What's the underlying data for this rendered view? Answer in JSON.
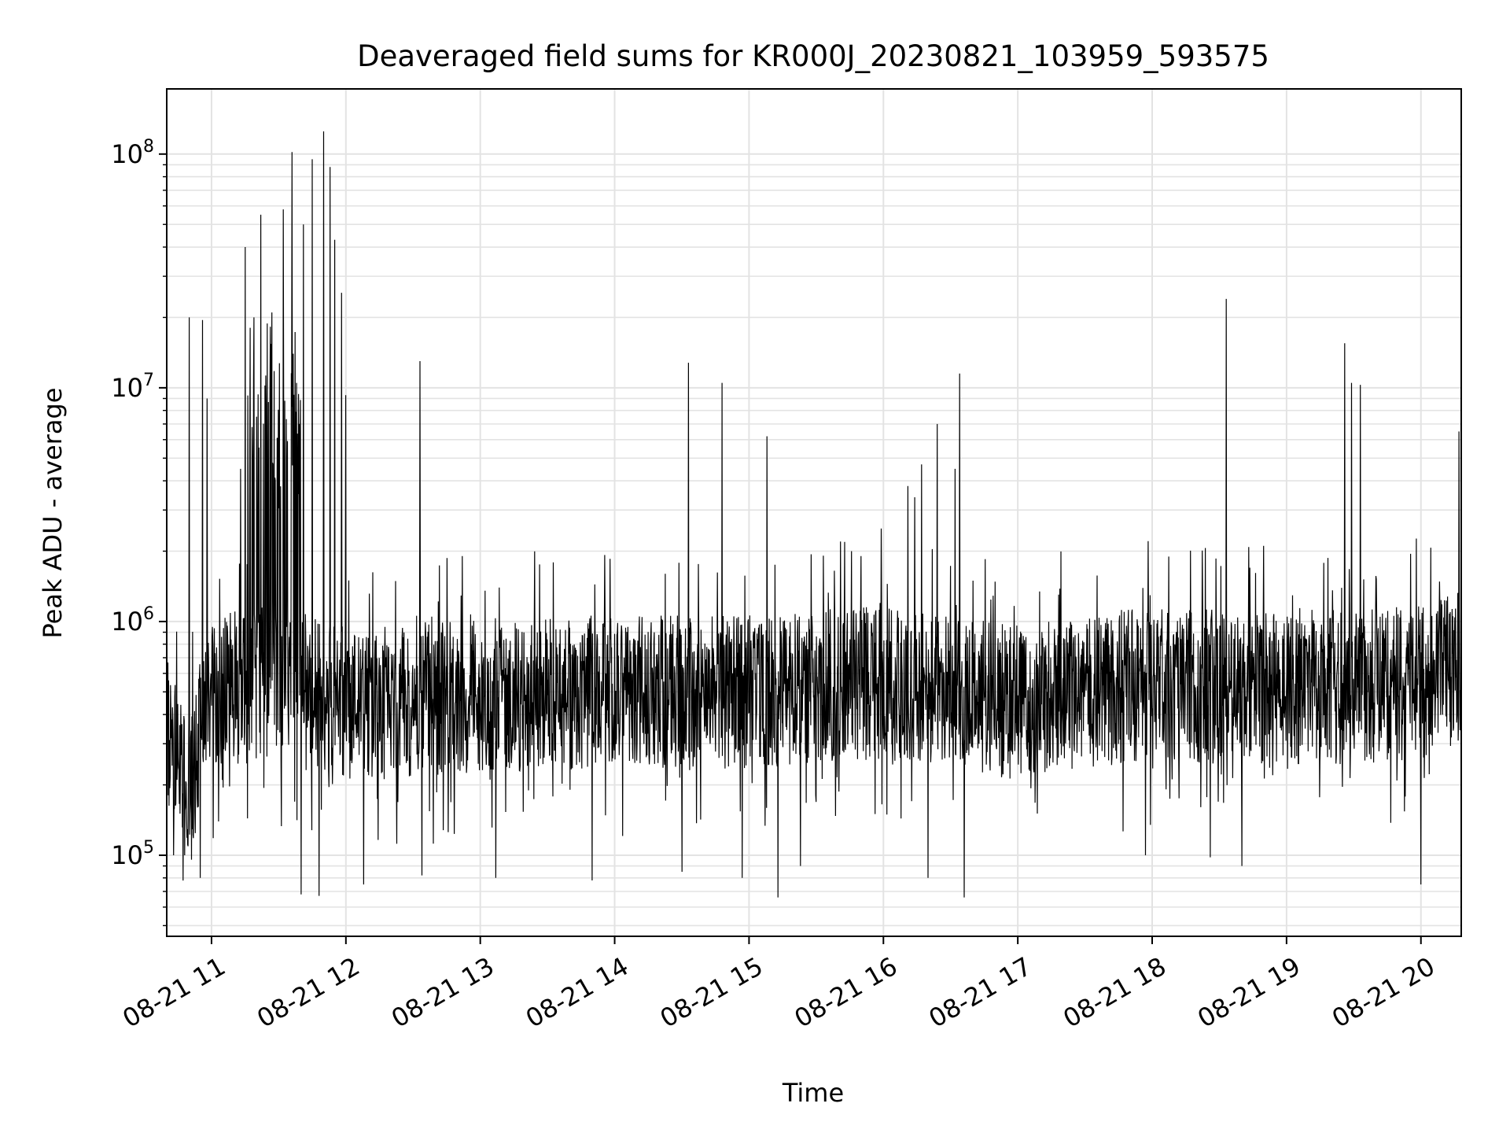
{
  "chart_data": {
    "type": "line",
    "title": "Deaveraged field sums for KR000J_20230821_103959_593575",
    "xlabel": "Time",
    "ylabel": "Peak ADU - average",
    "yscale": "log",
    "xlim": [
      "2023-08-21 10:40",
      "2023-08-21 20:18"
    ],
    "ylim": [
      45000,
      190000000
    ],
    "x_ticks": [
      "08-21 11",
      "08-21 12",
      "08-21 13",
      "08-21 14",
      "08-21 15",
      "08-21 16",
      "08-21 17",
      "08-21 18",
      "08-21 19",
      "08-21 20"
    ],
    "y_ticks": [
      {
        "base": "10",
        "exp": "5"
      },
      {
        "base": "10",
        "exp": "6"
      },
      {
        "base": "10",
        "exp": "7"
      },
      {
        "base": "10",
        "exp": "8"
      }
    ],
    "grid": true,
    "line_color": "#000000",
    "baseline": [
      [
        "2023-08-21 10:40",
        300000
      ],
      [
        "2023-08-21 10:50",
        200000
      ],
      [
        "2023-08-21 11:00",
        500000
      ],
      [
        "2023-08-21 11:30",
        550000
      ],
      [
        "2023-08-21 12:00",
        450000
      ],
      [
        "2023-08-21 13:00",
        480000
      ],
      [
        "2023-08-21 14:00",
        500000
      ],
      [
        "2023-08-21 15:00",
        500000
      ],
      [
        "2023-08-21 16:00",
        550000
      ],
      [
        "2023-08-21 17:00",
        450000
      ],
      [
        "2023-08-21 18:00",
        550000
      ],
      [
        "2023-08-21 19:00",
        500000
      ],
      [
        "2023-08-21 20:00",
        550000
      ],
      [
        "2023-08-21 20:18",
        650000
      ]
    ],
    "spikes": [
      [
        "2023-08-21 10:50",
        20000000
      ],
      [
        "2023-08-21 10:56",
        19500000
      ],
      [
        "2023-08-21 10:58",
        9000000
      ],
      [
        "2023-08-21 11:13",
        4500000
      ],
      [
        "2023-08-21 11:15",
        40000000
      ],
      [
        "2023-08-21 11:17",
        35000000
      ],
      [
        "2023-08-21 11:19",
        20000000
      ],
      [
        "2023-08-21 11:22",
        55000000
      ],
      [
        "2023-08-21 11:27",
        21000000
      ],
      [
        "2023-08-21 11:32",
        58000000
      ],
      [
        "2023-08-21 11:36",
        102000000
      ],
      [
        "2023-08-21 11:38",
        10500000
      ],
      [
        "2023-08-21 11:41",
        50000000
      ],
      [
        "2023-08-21 11:45",
        95000000
      ],
      [
        "2023-08-21 11:48",
        17000000
      ],
      [
        "2023-08-21 11:50",
        125000000
      ],
      [
        "2023-08-21 11:53",
        88000000
      ],
      [
        "2023-08-21 11:55",
        43000000
      ],
      [
        "2023-08-21 11:58",
        25500000
      ],
      [
        "2023-08-21 12:00",
        9300000
      ],
      [
        "2023-08-21 12:33",
        13000000
      ],
      [
        "2023-08-21 14:33",
        12800000
      ],
      [
        "2023-08-21 14:48",
        10500000
      ],
      [
        "2023-08-21 15:08",
        6200000
      ],
      [
        "2023-08-21 15:59",
        2500000
      ],
      [
        "2023-08-21 16:11",
        3800000
      ],
      [
        "2023-08-21 16:14",
        3400000
      ],
      [
        "2023-08-21 16:17",
        4700000
      ],
      [
        "2023-08-21 16:24",
        7000000
      ],
      [
        "2023-08-21 16:32",
        4500000
      ],
      [
        "2023-08-21 16:34",
        11500000
      ],
      [
        "2023-08-21 18:33",
        24000000
      ],
      [
        "2023-08-21 19:26",
        15500000
      ],
      [
        "2023-08-21 19:29",
        10500000
      ],
      [
        "2023-08-21 19:33",
        10300000
      ],
      [
        "2023-08-21 20:17",
        6500000
      ]
    ],
    "dips": [
      [
        "2023-08-21 10:43",
        100000
      ],
      [
        "2023-08-21 10:48",
        100000
      ],
      [
        "2023-08-21 10:55",
        80000
      ],
      [
        "2023-08-21 11:40",
        68000
      ],
      [
        "2023-08-21 11:48",
        67000
      ],
      [
        "2023-08-21 12:08",
        75000
      ],
      [
        "2023-08-21 12:34",
        82000
      ],
      [
        "2023-08-21 13:07",
        80000
      ],
      [
        "2023-08-21 13:50",
        78000
      ],
      [
        "2023-08-21 14:30",
        85000
      ],
      [
        "2023-08-21 14:57",
        80000
      ],
      [
        "2023-08-21 15:13",
        66000
      ],
      [
        "2023-08-21 15:23",
        90000
      ],
      [
        "2023-08-21 16:20",
        80000
      ],
      [
        "2023-08-21 16:36",
        66000
      ],
      [
        "2023-08-21 17:57",
        100000
      ],
      [
        "2023-08-21 18:26",
        98000
      ],
      [
        "2023-08-21 18:40",
        90000
      ],
      [
        "2023-08-21 20:00",
        75000
      ]
    ]
  }
}
